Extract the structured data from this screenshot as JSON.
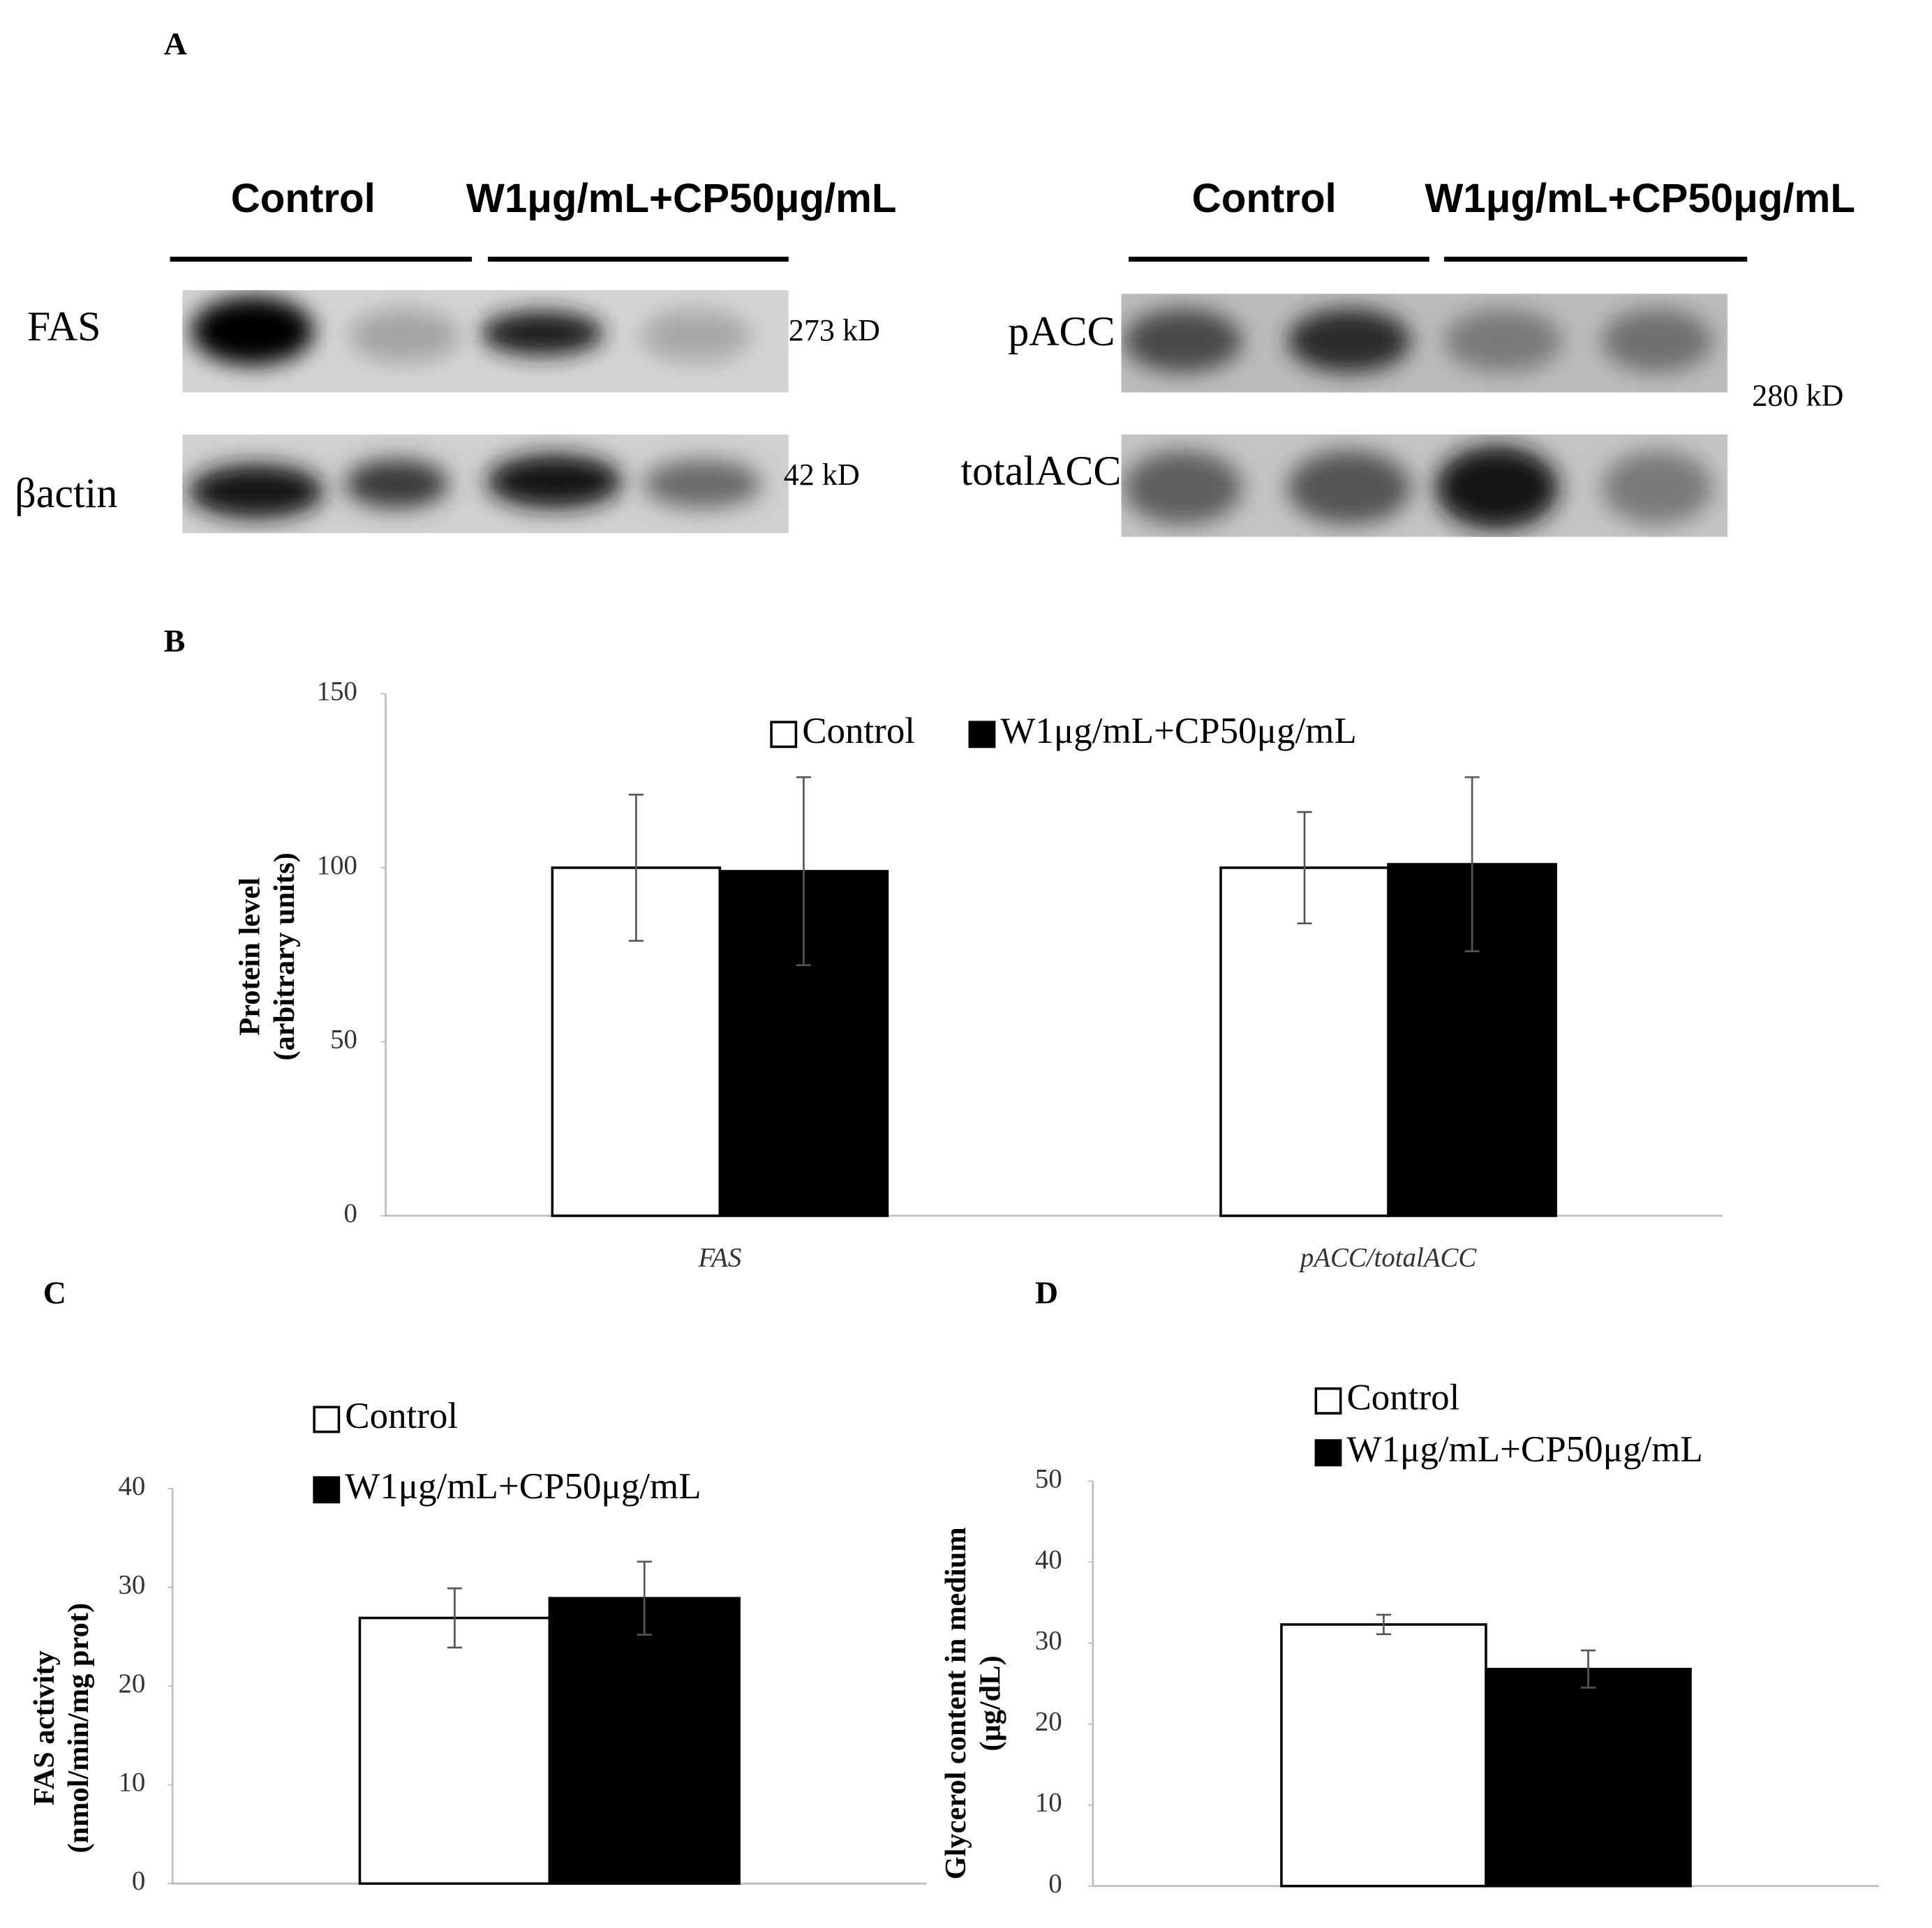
{
  "panel_a": {
    "label": "A",
    "blots": [
      {
        "headers": [
          "Control",
          "W1μg/mL+CP50μg/mL"
        ],
        "rows": [
          {
            "label": "FAS",
            "size": "273 kD"
          },
          {
            "label": "βactin",
            "size": "42  kD"
          }
        ]
      },
      {
        "headers": [
          "Control",
          "W1μg/mL+CP50μg/mL"
        ],
        "rows": [
          {
            "label": "pACC"
          },
          {
            "label": "totalACC"
          }
        ],
        "size": "280 kD"
      }
    ]
  },
  "chart_data": [
    {
      "type": "bar",
      "panel": "B",
      "ylabel": [
        "Protein level",
        "(arbitrary units)"
      ],
      "categories": [
        "FAS",
        "pACC/totalACC"
      ],
      "series": [
        {
          "name": "Control",
          "color": "#ffffff",
          "values": [
            100,
            100
          ],
          "errors": [
            21,
            16
          ]
        },
        {
          "name": "W1μg/mL+CP50μg/mL",
          "color": "#000000",
          "values": [
            99,
            101
          ],
          "errors": [
            27,
            25
          ]
        }
      ],
      "ylim": [
        0,
        150
      ],
      "yticks": [
        0,
        50,
        100,
        150
      ]
    },
    {
      "type": "bar",
      "panel": "C",
      "ylabel": [
        "FAS activity",
        "(nmol/min/mg prot)"
      ],
      "categories": [
        null
      ],
      "series": [
        {
          "name": "Control",
          "color": "#ffffff",
          "values": [
            26.9
          ],
          "errors": [
            3
          ]
        },
        {
          "name": "W1μg/mL+CP50μg/mL",
          "color": "#000000",
          "values": [
            28.9
          ],
          "errors": [
            3.7
          ]
        }
      ],
      "ylim": [
        0,
        40
      ],
      "yticks": [
        0,
        10,
        20,
        30,
        40
      ]
    },
    {
      "type": "bar",
      "panel": "D",
      "ylabel": [
        "Glycerol content in medium",
        "(μg/dL)"
      ],
      "categories": [
        null
      ],
      "series": [
        {
          "name": "Control",
          "color": "#ffffff",
          "values": [
            32.3
          ],
          "errors": [
            1.2
          ]
        },
        {
          "name": "W1μg/mL+CP50μg/mL",
          "color": "#000000",
          "values": [
            26.8
          ],
          "errors": [
            2.3
          ]
        }
      ],
      "ylim": [
        0,
        50
      ],
      "yticks": [
        0,
        10,
        20,
        30,
        40,
        50
      ]
    }
  ]
}
